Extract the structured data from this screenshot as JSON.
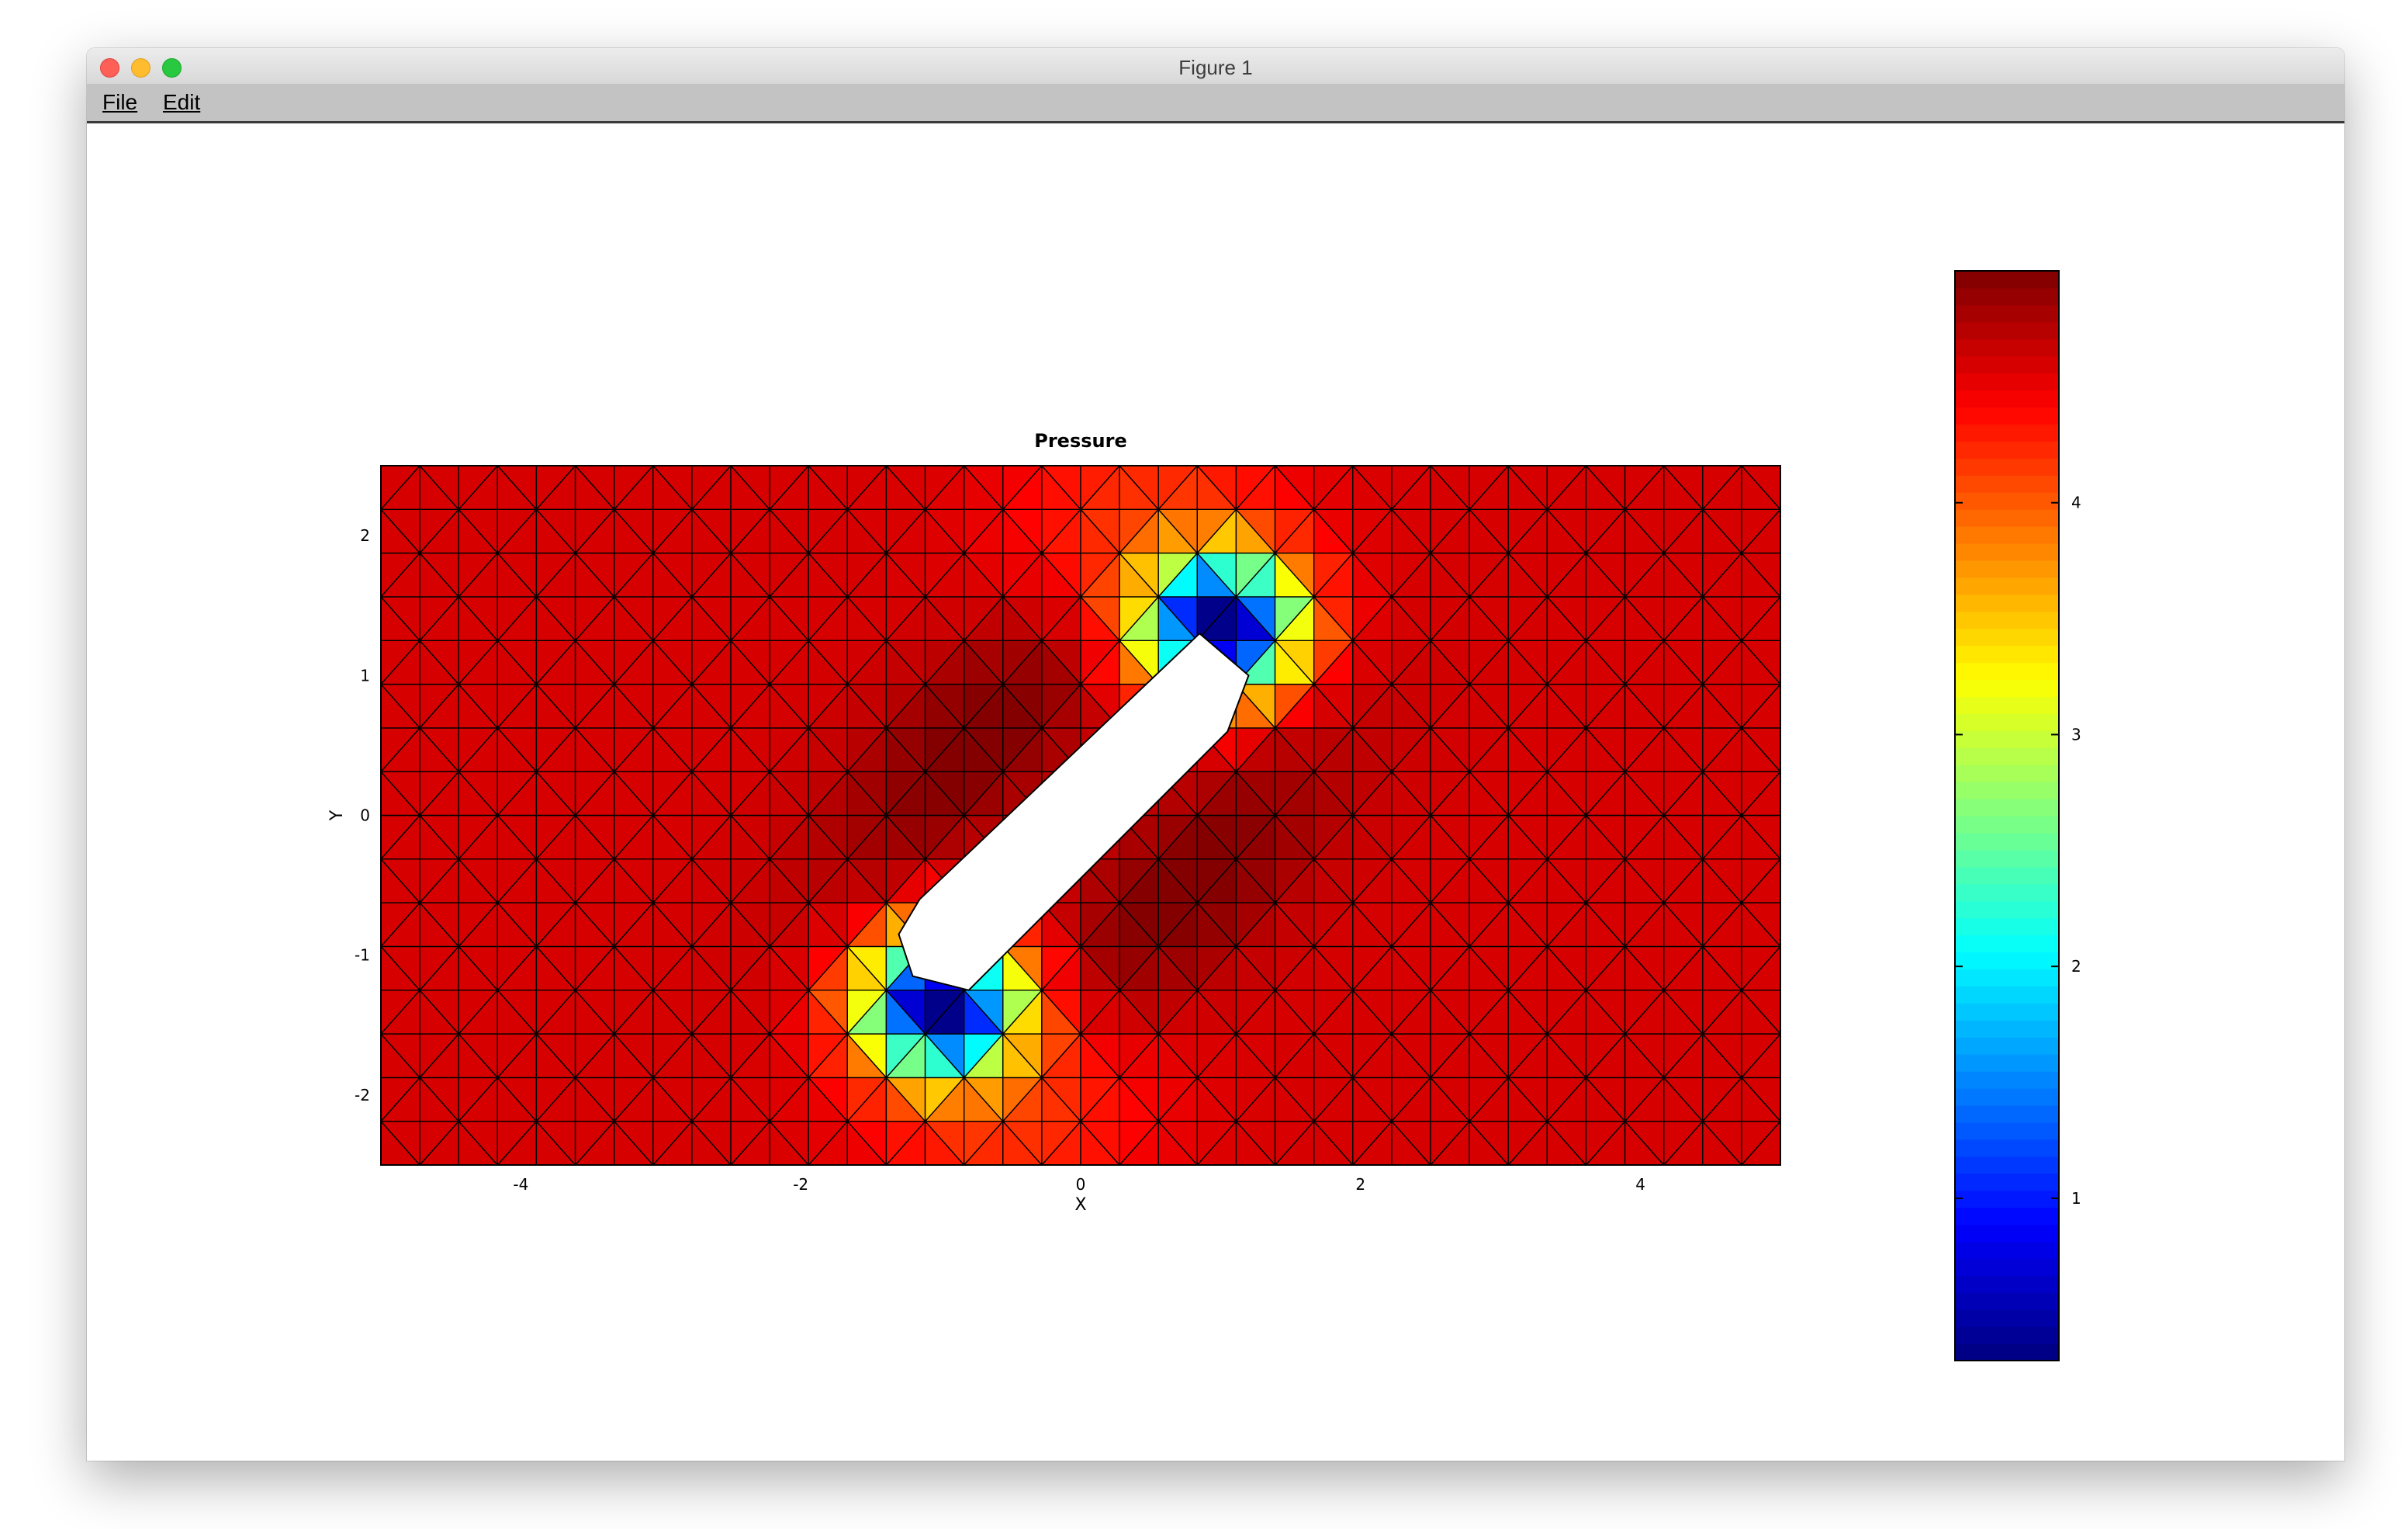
{
  "window": {
    "title": "Figure 1"
  },
  "menu": {
    "file": "File",
    "edit": "Edit"
  },
  "colors": {
    "accent_close": "#fe5f57",
    "accent_min": "#febc2e",
    "accent_max": "#28c840"
  },
  "chart_data": {
    "type": "heatmap",
    "title": "Pressure",
    "xlabel": "X",
    "ylabel": "Y",
    "xlim": [
      -5,
      5
    ],
    "ylim": [
      -2.5,
      2.5
    ],
    "x_ticks": [
      -4,
      -2,
      0,
      2,
      4
    ],
    "y_ticks": [
      -2,
      -1,
      0,
      1,
      2
    ],
    "colormap": "jet",
    "colorbar": {
      "range": [
        0.3,
        5.0
      ],
      "ticks": [
        1,
        2,
        3,
        4
      ]
    },
    "obstacle": {
      "shape": "rotated rounded rectangle",
      "vertices": [
        [
          -1.15,
          -0.6
        ],
        [
          0.85,
          1.3
        ],
        [
          1.2,
          1.0
        ],
        [
          1.05,
          0.6
        ],
        [
          -0.8,
          -1.25
        ],
        [
          -1.2,
          -1.15
        ],
        [
          -1.3,
          -0.85
        ]
      ]
    },
    "features": [
      {
        "region": "stagnation points near obstacle ends",
        "min_value": 0.4
      },
      {
        "region": "far field",
        "approx_value": 4.6
      },
      {
        "region": "wake bands along obstacle sides",
        "approx_value": 4.95
      }
    ],
    "grid": "triangular mesh"
  }
}
